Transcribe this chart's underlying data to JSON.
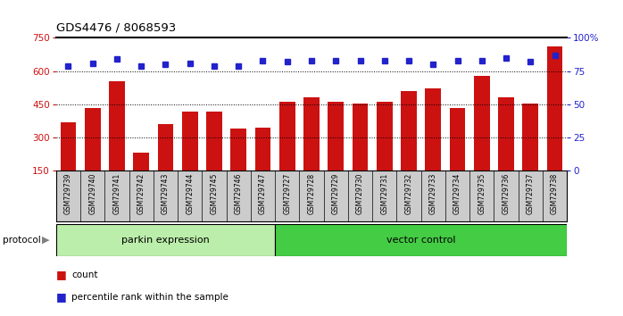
{
  "title": "GDS4476 / 8068593",
  "samples": [
    "GSM729739",
    "GSM729740",
    "GSM729741",
    "GSM729742",
    "GSM729743",
    "GSM729744",
    "GSM729745",
    "GSM729746",
    "GSM729747",
    "GSM729727",
    "GSM729728",
    "GSM729729",
    "GSM729730",
    "GSM729731",
    "GSM729732",
    "GSM729733",
    "GSM729734",
    "GSM729735",
    "GSM729736",
    "GSM729737",
    "GSM729738"
  ],
  "counts": [
    370,
    435,
    555,
    230,
    360,
    415,
    415,
    340,
    345,
    460,
    480,
    460,
    455,
    460,
    510,
    520,
    435,
    580,
    480,
    455,
    710
  ],
  "percentile_ranks": [
    79,
    81,
    84,
    79,
    80,
    81,
    79,
    79,
    83,
    82,
    83,
    83,
    83,
    83,
    83,
    80,
    83,
    83,
    85,
    82,
    87
  ],
  "parkin_count": 9,
  "vector_count": 12,
  "bar_color": "#cc1111",
  "dot_color": "#2222cc",
  "parkin_color": "#bbeeaa",
  "vector_color": "#44cc44",
  "bg_color": "#cccccc",
  "ylim_left": [
    150,
    750
  ],
  "ylim_right": [
    0,
    100
  ],
  "yticks_left": [
    150,
    300,
    450,
    600,
    750
  ],
  "yticks_right": [
    0,
    25,
    50,
    75,
    100
  ],
  "yticklabels_right": [
    "0",
    "25",
    "50",
    "75",
    "100%"
  ],
  "grid_lines": [
    300,
    450,
    600
  ]
}
